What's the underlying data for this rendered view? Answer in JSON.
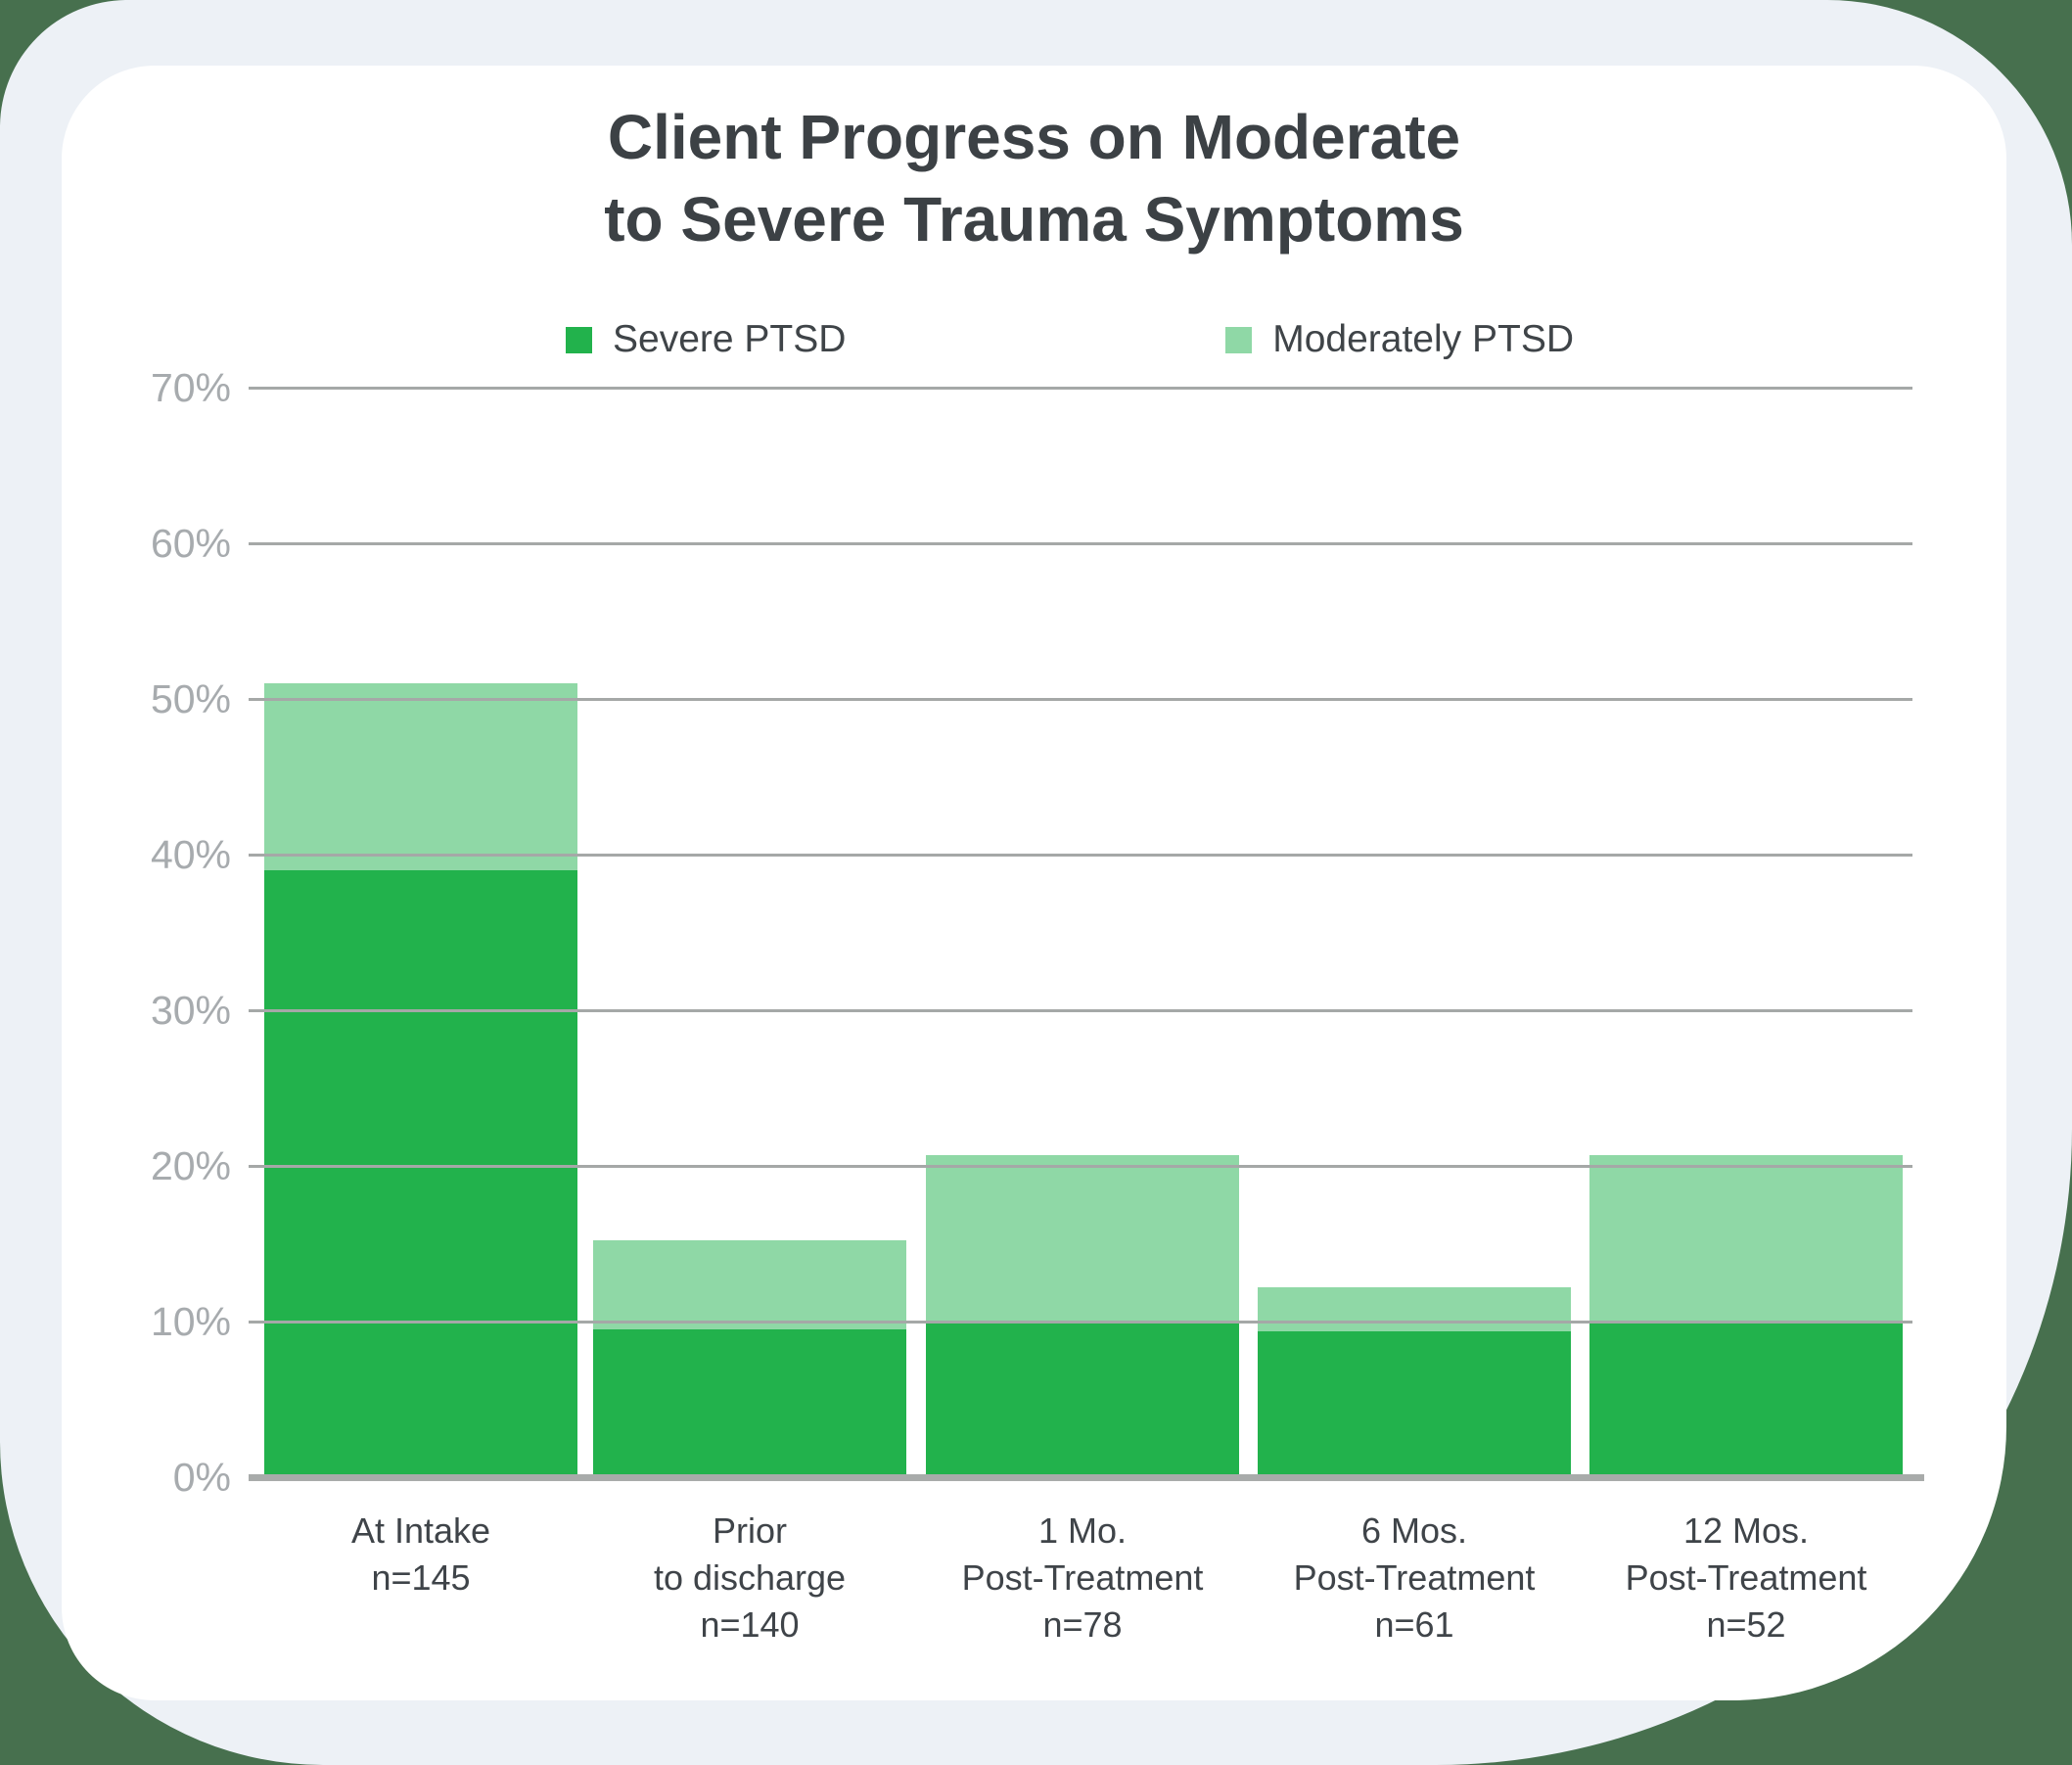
{
  "page": {
    "title_line1": "Client Progress on Moderate",
    "title_line2": "to Severe Trauma Symptoms"
  },
  "legend": {
    "items": [
      {
        "label": "Severe PTSD",
        "color": "#22b24c"
      },
      {
        "label": "Moderately PTSD",
        "color": "#8fd8a6"
      }
    ]
  },
  "chart_data": {
    "type": "bar",
    "stacked": true,
    "title": "Client Progress on Moderate to Severe Trauma Symptoms",
    "categories": [
      [
        "At Intake",
        "n=145"
      ],
      [
        "Prior",
        "to discharge",
        "n=140"
      ],
      [
        "1 Mo.",
        "Post-Treatment",
        "n=78"
      ],
      [
        "6 Mos.",
        "Post-Treatment",
        "n=61"
      ],
      [
        "12 Mos.",
        "Post-Treatment",
        "n=52"
      ]
    ],
    "series": [
      {
        "name": "Severe PTSD",
        "color": "#22b24c",
        "values": [
          39,
          9.5,
          9.9,
          9.4,
          9.9
        ]
      },
      {
        "name": "Moderately PTSD",
        "color": "#8fd8a6",
        "values": [
          12,
          5.7,
          10.8,
          2.8,
          10.8
        ]
      }
    ],
    "stack_totals": [
      51,
      15.2,
      20.7,
      12.2,
      20.7
    ],
    "xlabel": "",
    "ylabel": "",
    "y_ticks": [
      "0%",
      "10%",
      "20%",
      "30%",
      "40%",
      "50%",
      "60%",
      "70%"
    ],
    "ylim": [
      0,
      70
    ],
    "grid": true,
    "gridline_color": "#a5a8a7",
    "legend_position": "top"
  },
  "colors": {
    "page_background": "#47704e",
    "sheet_background": "#edf1f6",
    "card_background": "#ffffff",
    "title_text": "#3c4145",
    "axis_label_text": "#a7abae",
    "category_label_text": "#3f4449"
  }
}
